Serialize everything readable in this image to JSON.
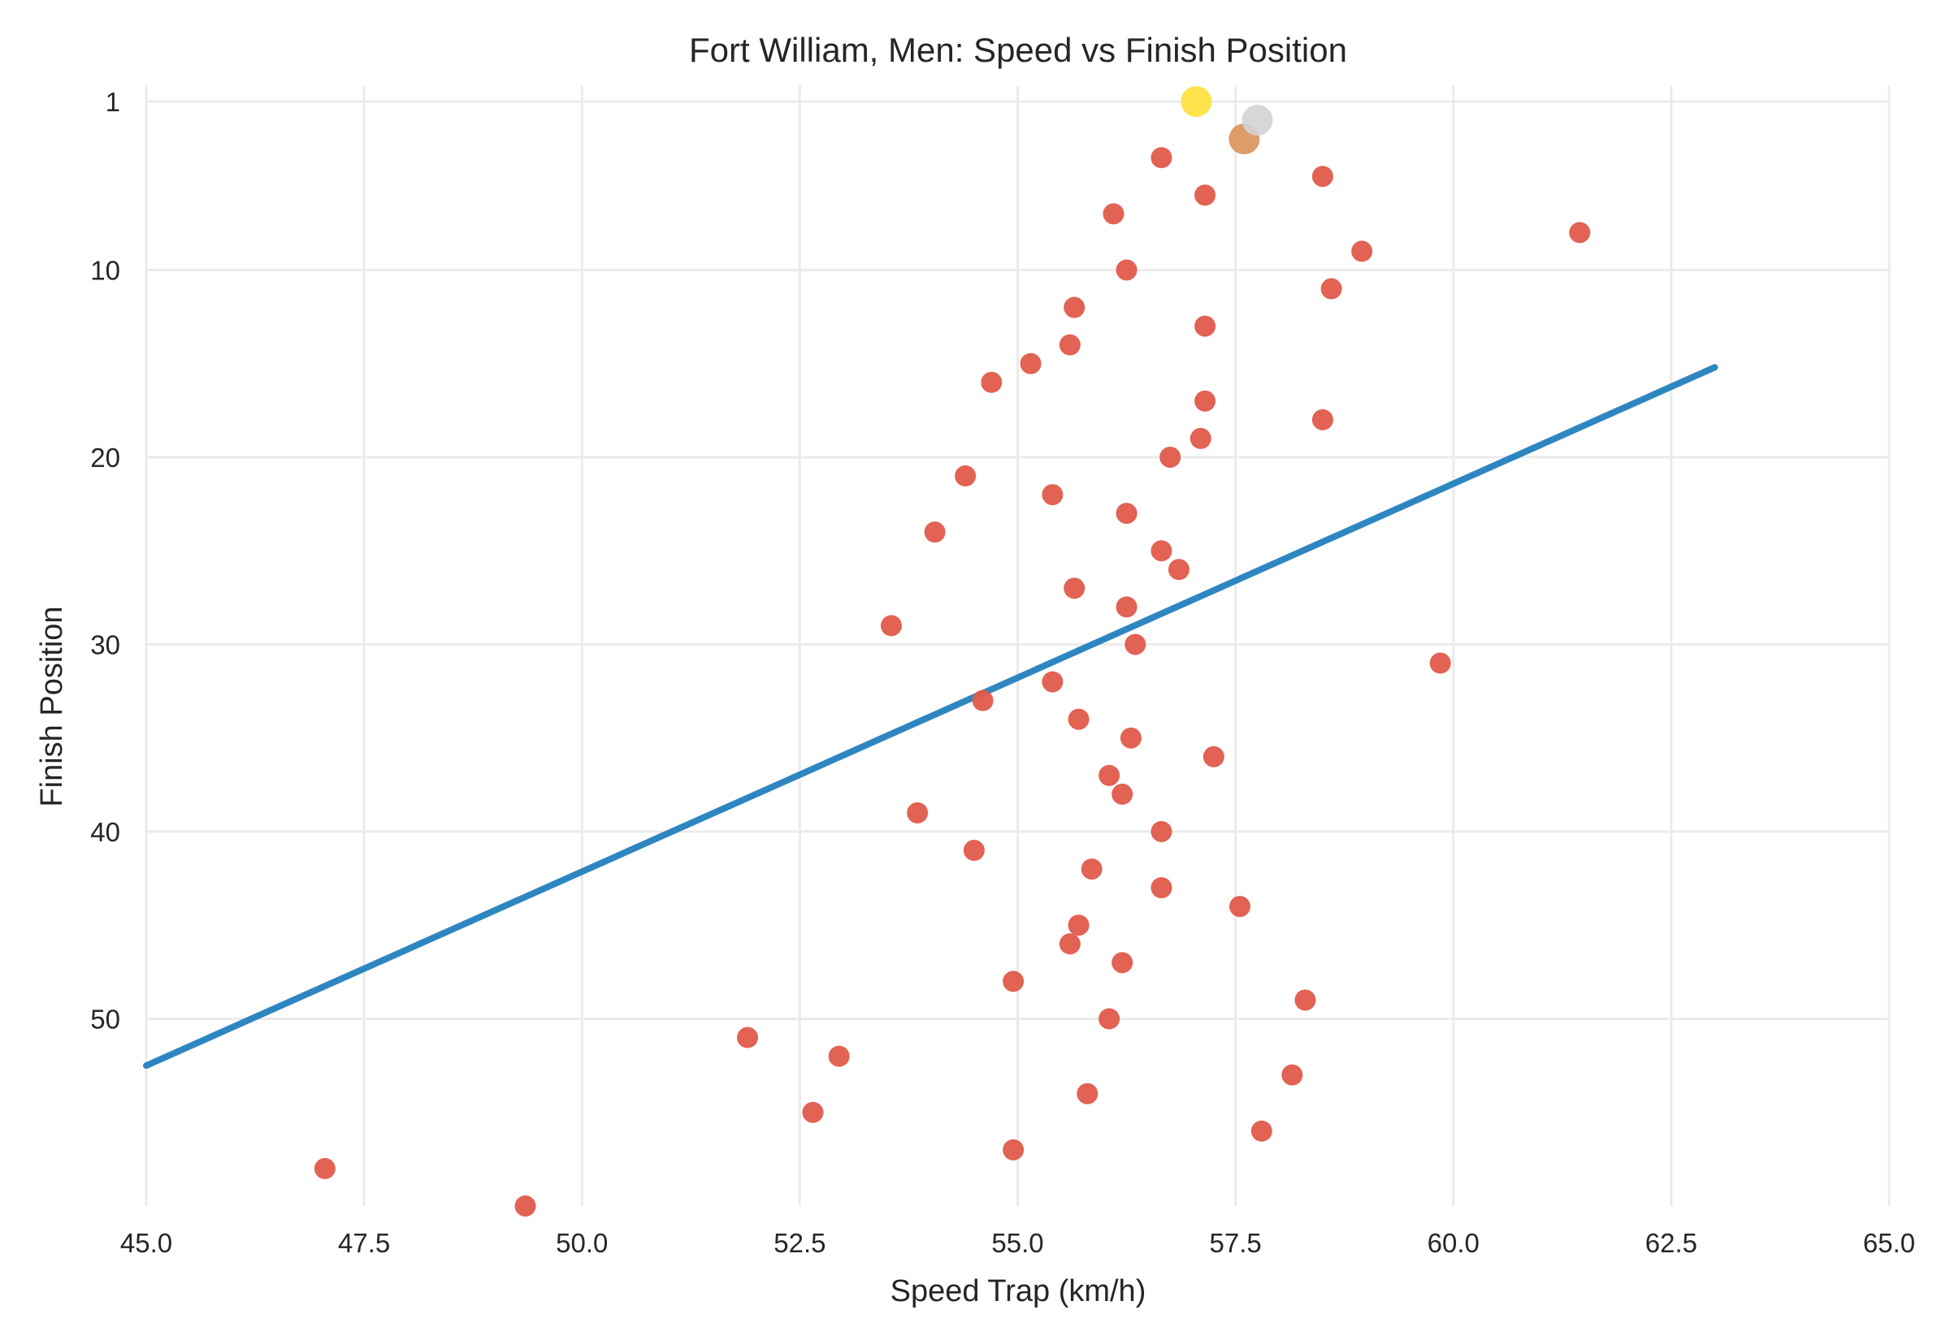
{
  "chart_data": {
    "type": "scatter",
    "title": "Fort William, Men: Speed vs Finish Position",
    "xlabel": "Speed Trap (km/h)",
    "ylabel": "Finish Position",
    "xlim": [
      45.0,
      65.0
    ],
    "ylim": [
      60,
      1
    ],
    "y_inverted": true,
    "x_ticks": [
      "45.0",
      "47.5",
      "50.0",
      "52.5",
      "55.0",
      "57.5",
      "60.0",
      "62.5",
      "65.0"
    ],
    "x_tick_values": [
      45.0,
      47.5,
      50.0,
      52.5,
      55.0,
      57.5,
      60.0,
      62.5,
      65.0
    ],
    "y_ticks": [
      "1",
      "10",
      "20",
      "30",
      "40",
      "50"
    ],
    "y_tick_values": [
      1,
      10,
      20,
      30,
      40,
      50
    ],
    "grid": true,
    "colors": {
      "points": "#E05A4B",
      "gold": "#FFE03A",
      "silver": "#D3D3D3",
      "bronze": "#D9915A",
      "trend": "#2E86C1",
      "grid": "#EBEBEB",
      "text": "#262626"
    },
    "podium": [
      {
        "position": 1,
        "speed": 57.05,
        "medal": "gold"
      },
      {
        "position": 2,
        "speed": 57.75,
        "medal": "silver"
      },
      {
        "position": 3,
        "speed": 57.6,
        "medal": "bronze"
      }
    ],
    "points": [
      {
        "x": 56.65,
        "y": 4
      },
      {
        "x": 58.5,
        "y": 5
      },
      {
        "x": 57.15,
        "y": 6
      },
      {
        "x": 56.1,
        "y": 7
      },
      {
        "x": 61.45,
        "y": 8
      },
      {
        "x": 58.95,
        "y": 9
      },
      {
        "x": 56.25,
        "y": 10
      },
      {
        "x": 58.6,
        "y": 11
      },
      {
        "x": 55.65,
        "y": 12
      },
      {
        "x": 57.15,
        "y": 13
      },
      {
        "x": 55.6,
        "y": 14
      },
      {
        "x": 55.15,
        "y": 15
      },
      {
        "x": 54.7,
        "y": 16
      },
      {
        "x": 57.15,
        "y": 17
      },
      {
        "x": 58.5,
        "y": 18
      },
      {
        "x": 57.1,
        "y": 19
      },
      {
        "x": 56.75,
        "y": 20
      },
      {
        "x": 54.4,
        "y": 21
      },
      {
        "x": 55.4,
        "y": 22
      },
      {
        "x": 56.25,
        "y": 23
      },
      {
        "x": 54.05,
        "y": 24
      },
      {
        "x": 56.65,
        "y": 25
      },
      {
        "x": 56.85,
        "y": 26
      },
      {
        "x": 55.65,
        "y": 27
      },
      {
        "x": 56.25,
        "y": 28
      },
      {
        "x": 53.55,
        "y": 29
      },
      {
        "x": 56.35,
        "y": 30
      },
      {
        "x": 59.85,
        "y": 31
      },
      {
        "x": 55.4,
        "y": 32
      },
      {
        "x": 54.6,
        "y": 33
      },
      {
        "x": 55.7,
        "y": 34
      },
      {
        "x": 56.3,
        "y": 35
      },
      {
        "x": 57.25,
        "y": 36
      },
      {
        "x": 56.05,
        "y": 37
      },
      {
        "x": 56.2,
        "y": 38
      },
      {
        "x": 53.85,
        "y": 39
      },
      {
        "x": 56.65,
        "y": 40
      },
      {
        "x": 54.5,
        "y": 41
      },
      {
        "x": 55.85,
        "y": 42
      },
      {
        "x": 56.65,
        "y": 43
      },
      {
        "x": 57.55,
        "y": 44
      },
      {
        "x": 55.7,
        "y": 45
      },
      {
        "x": 55.6,
        "y": 46
      },
      {
        "x": 56.2,
        "y": 47
      },
      {
        "x": 54.95,
        "y": 48
      },
      {
        "x": 58.3,
        "y": 49
      },
      {
        "x": 56.05,
        "y": 50
      },
      {
        "x": 51.9,
        "y": 51
      },
      {
        "x": 52.95,
        "y": 52
      },
      {
        "x": 58.15,
        "y": 53
      },
      {
        "x": 55.8,
        "y": 54
      },
      {
        "x": 52.65,
        "y": 55
      },
      {
        "x": 57.8,
        "y": 56
      },
      {
        "x": 54.95,
        "y": 57
      },
      {
        "x": 47.05,
        "y": 58
      },
      {
        "x": 49.35,
        "y": 60
      }
    ],
    "trend_line": {
      "x": [
        45.0,
        63.0
      ],
      "y": [
        52.5,
        15.2
      ]
    }
  }
}
